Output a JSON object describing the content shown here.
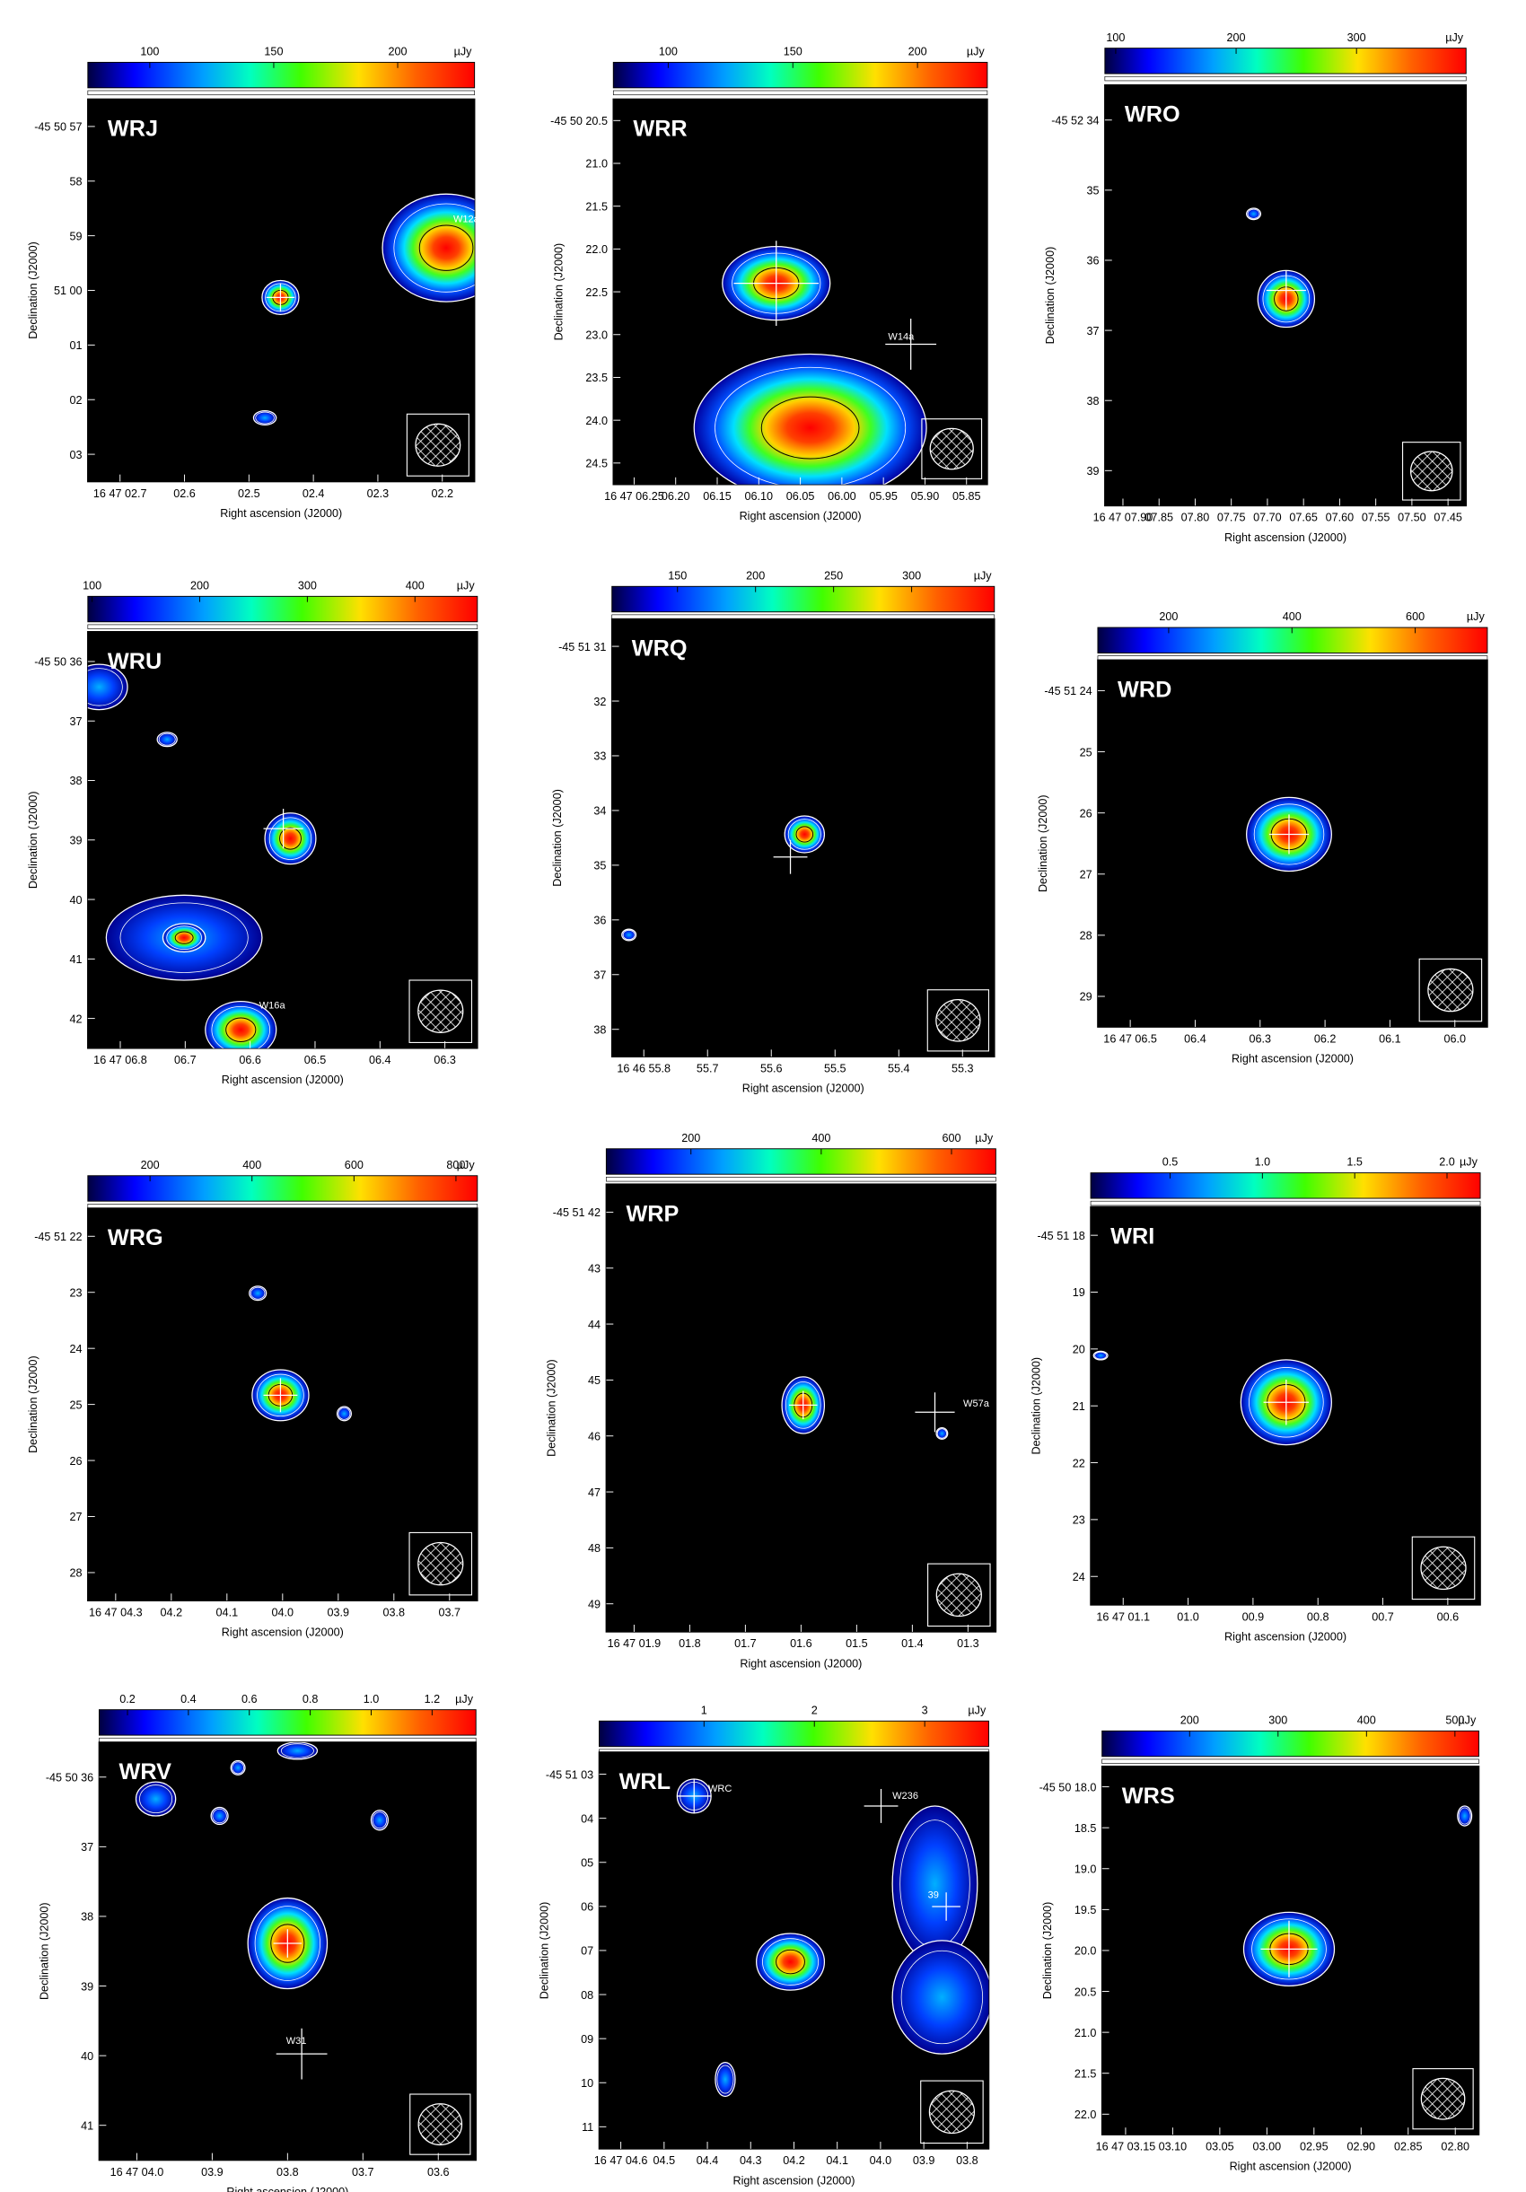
{
  "chart_data": [
    {
      "type": "heatmap",
      "title": "WRJ",
      "xlabel": "Right ascension (J2000)",
      "ylabel": "Declination (J2000)",
      "xticks": [
        "16 47 02.7",
        "02.6",
        "02.5",
        "02.4",
        "02.3",
        "02.2"
      ],
      "yticks": [
        "-45 50 57",
        "58",
        "59",
        "51 00",
        "01",
        "02",
        "03"
      ],
      "colorbar": {
        "lim": [
          75,
          231
        ],
        "ticks": [
          100,
          150,
          200
        ],
        "unit": "µJy"
      },
      "annotations": [
        "W12a"
      ]
    },
    {
      "type": "heatmap",
      "title": "WRR",
      "xlabel": "Right ascension (J2000)",
      "ylabel": "Declination (J2000)",
      "xticks": [
        "16 47 06.25",
        "06.20",
        "06.15",
        "06.10",
        "06.05",
        "06.00",
        "05.95",
        "05.90",
        "05.85"
      ],
      "yticks": [
        "-45 50 20.5",
        "21.0",
        "21.5",
        "22.0",
        "22.5",
        "23.0",
        "23.5",
        "24.0",
        "24.5"
      ],
      "colorbar": {
        "lim": [
          78,
          228
        ],
        "ticks": [
          100,
          150,
          200
        ],
        "unit": "µJy"
      },
      "annotations": [
        "W14a"
      ]
    },
    {
      "type": "heatmap",
      "title": "WRO",
      "xlabel": "Right ascension (J2000)",
      "ylabel": "Declination (J2000)",
      "xticks": [
        "16 47 07.90",
        "07.85",
        "07.80",
        "07.75",
        "07.70",
        "07.65",
        "07.60",
        "07.55",
        "07.50",
        "07.45"
      ],
      "yticks": [
        "-45 52 34",
        "35",
        "36",
        "37",
        "38",
        "39"
      ],
      "colorbar": {
        "lim": [
          91,
          391
        ],
        "ticks": [
          100,
          200,
          300
        ],
        "unit": "µJy"
      },
      "annotations": []
    },
    {
      "type": "heatmap",
      "title": "WRU",
      "xlabel": "Right ascension (J2000)",
      "ylabel": "Declination (J2000)",
      "xticks": [
        "16 47 06.8",
        "06.7",
        "06.6",
        "06.5",
        "06.4",
        "06.3"
      ],
      "yticks": [
        "-45 50 36",
        "37",
        "38",
        "39",
        "40",
        "41",
        "42"
      ],
      "colorbar": {
        "lim": [
          96,
          458
        ],
        "ticks": [
          100,
          200,
          300,
          400
        ],
        "unit": "µJy"
      },
      "annotations": [
        "W16a"
      ]
    },
    {
      "type": "heatmap",
      "title": "WRQ",
      "xlabel": "Right ascension (J2000)",
      "ylabel": "Declination (J2000)",
      "xticks": [
        "16 46 55.8",
        "55.7",
        "55.6",
        "55.5",
        "55.4",
        "55.3"
      ],
      "yticks": [
        "-45 51 31",
        "32",
        "33",
        "34",
        "35",
        "36",
        "37",
        "38"
      ],
      "colorbar": {
        "lim": [
          108,
          353
        ],
        "ticks": [
          150,
          200,
          250,
          300
        ],
        "unit": "µJy"
      },
      "annotations": []
    },
    {
      "type": "heatmap",
      "title": "WRD",
      "xlabel": "Right ascension (J2000)",
      "ylabel": "Declination (J2000)",
      "xticks": [
        "16 47 06.5",
        "06.4",
        "06.3",
        "06.2",
        "06.1",
        "06.0"
      ],
      "yticks": [
        "-45 51 24",
        "25",
        "26",
        "27",
        "28",
        "29"
      ],
      "colorbar": {
        "lim": [
          85,
          717
        ],
        "ticks": [
          200,
          400,
          600
        ],
        "unit": "µJy"
      },
      "annotations": []
    },
    {
      "type": "heatmap",
      "title": "WRG",
      "xlabel": "Right ascension (J2000)",
      "ylabel": "Declination (J2000)",
      "xticks": [
        "16 47 04.3",
        "04.2",
        "04.1",
        "04.0",
        "03.9",
        "03.8",
        "03.7"
      ],
      "yticks": [
        "-45 51 22",
        "23",
        "24",
        "25",
        "26",
        "27",
        "28"
      ],
      "colorbar": {
        "lim": [
          78,
          842
        ],
        "ticks": [
          200,
          400,
          600,
          800
        ],
        "unit": "µJy"
      },
      "annotations": []
    },
    {
      "type": "heatmap",
      "title": "WRP",
      "xlabel": "Right ascension (J2000)",
      "ylabel": "Declination (J2000)",
      "xticks": [
        "16 47 01.9",
        "01.8",
        "01.7",
        "01.6",
        "01.5",
        "01.4",
        "01.3"
      ],
      "yticks": [
        "-45 51 42",
        "43",
        "44",
        "45",
        "46",
        "47",
        "48",
        "49"
      ],
      "colorbar": {
        "lim": [
          70,
          668
        ],
        "ticks": [
          200,
          400,
          600
        ],
        "unit": "µJy"
      },
      "annotations": [
        "W57a"
      ]
    },
    {
      "type": "heatmap",
      "title": "WRI",
      "xlabel": "Right ascension (J2000)",
      "ylabel": "Declination (J2000)",
      "xticks": [
        "16 47 01.1",
        "01.0",
        "00.9",
        "00.8",
        "00.7",
        "00.6"
      ],
      "yticks": [
        "-45 51 18",
        "19",
        "20",
        "21",
        "22",
        "23",
        "24"
      ],
      "colorbar": {
        "lim": [
          0.07,
          2.18
        ],
        "ticks": [
          0.5,
          {
            "value": 1,
            "label": "1.0"
          },
          1.5,
          {
            "value": 2,
            "label": "2.0"
          }
        ],
        "unit": "µJy"
      },
      "annotations": []
    },
    {
      "type": "heatmap",
      "title": "WRV",
      "xlabel": "Right ascension (J2000)",
      "ylabel": "Declination (J2000)",
      "xticks": [
        "16 47 04.0",
        "03.9",
        "03.8",
        "03.7",
        "03.6"
      ],
      "yticks": [
        "-45 50 36",
        "37",
        "38",
        "39",
        "40",
        "41"
      ],
      "colorbar": {
        "lim": [
          0.107,
          1.344
        ],
        "ticks": [
          0.2,
          0.4,
          0.6,
          0.8,
          {
            "value": 1,
            "label": "1.0"
          },
          1.2
        ],
        "unit": "µJy"
      },
      "annotations": [
        "W31"
      ]
    },
    {
      "type": "heatmap",
      "title": "WRL",
      "xlabel": "Right ascension (J2000)",
      "ylabel": "Declination (J2000)",
      "xticks": [
        "16 47 04.6",
        "04.5",
        "04.4",
        "04.3",
        "04.2",
        "04.1",
        "04.0",
        "03.9",
        "03.8"
      ],
      "yticks": [
        "-45 51 03",
        "04",
        "05",
        "06",
        "07",
        "08",
        "09",
        "10",
        "11"
      ],
      "colorbar": {
        "lim": [
          0.05,
          3.58
        ],
        "ticks": [
          1,
          2,
          3
        ],
        "unit": "µJy"
      },
      "annotations": [
        "WRC",
        "W236",
        "39"
      ]
    },
    {
      "type": "heatmap",
      "title": "WRS",
      "xlabel": "Right ascension (J2000)",
      "ylabel": "Declination (J2000)",
      "xticks": [
        "16 47 03.15",
        "03.10",
        "03.05",
        "03.00",
        "02.95",
        "02.90",
        "02.85",
        "02.80"
      ],
      "yticks": [
        "-45 50 18.0",
        "18.5",
        "19.0",
        "19.5",
        "20.0",
        "20.5",
        "21.0",
        "21.5",
        "22.0"
      ],
      "colorbar": {
        "lim": [
          101,
          527
        ],
        "ticks": [
          200,
          300,
          400,
          500
        ],
        "unit": "µJy"
      },
      "annotations": []
    }
  ]
}
